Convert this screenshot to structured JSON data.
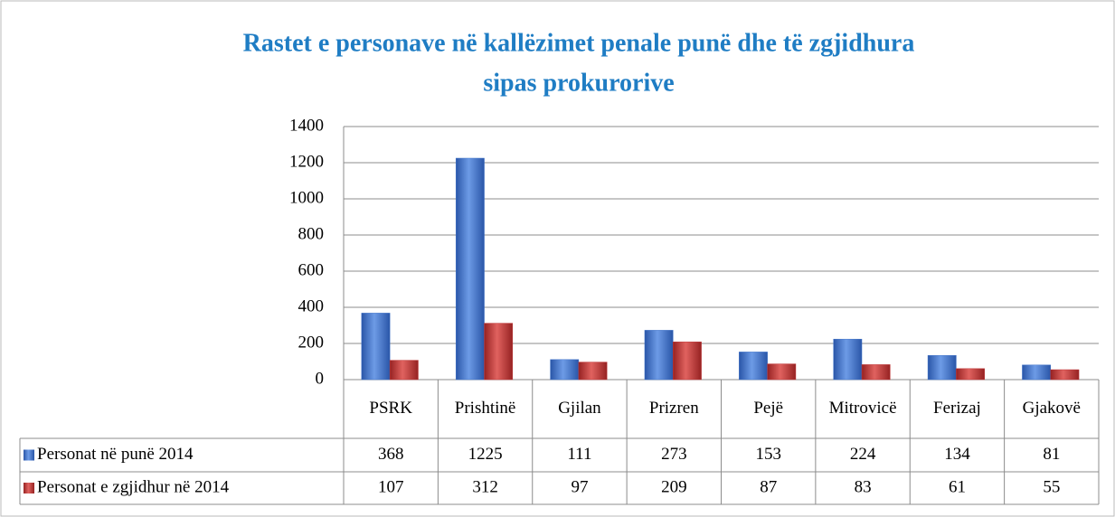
{
  "chart_data": {
    "type": "bar",
    "title": [
      "Rastet e personave në kallëzimet penale  punë dhe të zgjidhura",
      "sipas prokurorive"
    ],
    "categories": [
      "PSRK",
      "Prishtinë",
      "Gjilan",
      "Prizren",
      "Pejë",
      "Mitrovicë",
      "Ferizaj",
      "Gjakovë"
    ],
    "series": [
      {
        "name": "Personat në punë 2014",
        "color": "#3f72c8",
        "values": [
          368,
          1225,
          111,
          273,
          153,
          224,
          134,
          81
        ]
      },
      {
        "name": "Personat e zgjidhur në 2014",
        "color": "#c0393a",
        "values": [
          107,
          312,
          97,
          209,
          87,
          83,
          61,
          55
        ]
      }
    ],
    "ylim": [
      0,
      1400
    ],
    "yticks": [
      0,
      200,
      400,
      600,
      800,
      1000,
      1200,
      1400
    ],
    "grid": true,
    "data_table": true
  }
}
